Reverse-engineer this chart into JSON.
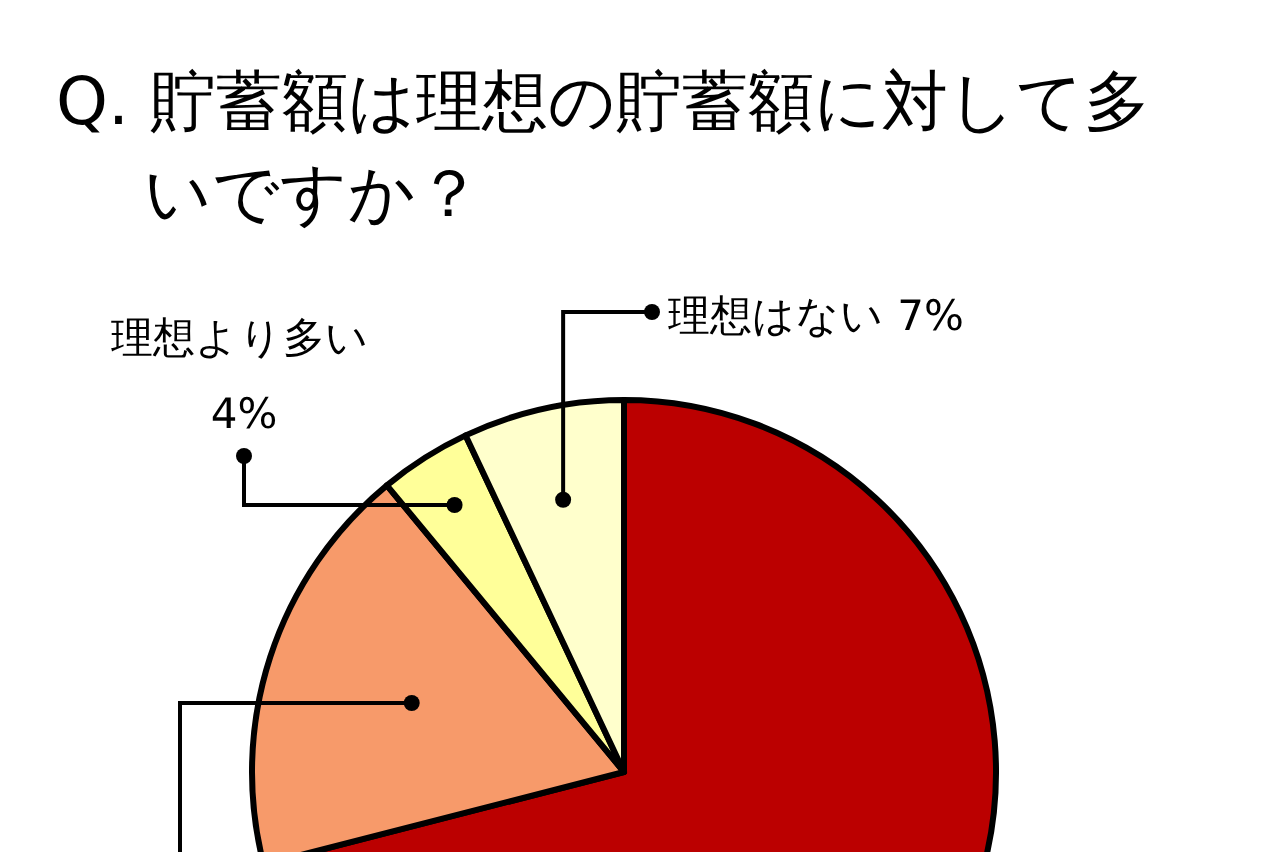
{
  "chart_data": {
    "type": "pie",
    "title": "Q. 貯蓄額は理想の貯蓄額に対して多いですか？",
    "categories": [
      null,
      null,
      "理想より多い",
      "理想はない"
    ],
    "values": [
      71,
      18,
      4,
      7
    ],
    "colors": [
      "#bb0000",
      "#f79a6a",
      "#ffff99",
      "#ffffcc"
    ],
    "value_labels": [
      null,
      null,
      "4%",
      "7%"
    ]
  }
}
